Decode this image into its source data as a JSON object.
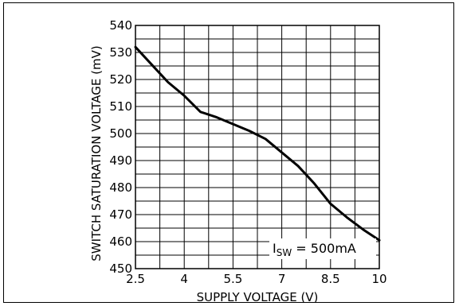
{
  "chart_data": {
    "type": "line",
    "title": "",
    "xlabel": "SUPPLY VOLTAGE (V)",
    "ylabel": "SWITCH SATURATION VOLTAGE (mV)",
    "xlim": [
      2.5,
      10
    ],
    "ylim": [
      450,
      540
    ],
    "x_major_ticks": [
      2.5,
      4,
      5.5,
      7,
      8.5,
      10
    ],
    "x_tick_labels": [
      "2.5",
      "4",
      "5.5",
      "7",
      "8.5",
      "10"
    ],
    "y_major_ticks": [
      450,
      460,
      470,
      480,
      490,
      500,
      510,
      520,
      530,
      540
    ],
    "y_tick_labels": [
      "450",
      "460",
      "470",
      "480",
      "490",
      "500",
      "510",
      "520",
      "530",
      "540"
    ],
    "grid": true,
    "series": [
      {
        "x": [
          2.5,
          3.0,
          3.5,
          4.0,
          4.5,
          5.0,
          5.5,
          6.0,
          6.5,
          7.0,
          7.5,
          8.0,
          8.5,
          9.0,
          9.5,
          10.0
        ],
        "y": [
          532,
          525.5,
          519,
          514,
          508,
          506,
          503.5,
          501,
          498,
          493,
          488,
          481.5,
          474,
          469,
          464.5,
          460.5
        ]
      }
    ],
    "annotation": {
      "symbol": "I",
      "subscript": "SW",
      "text": " = 500mA"
    }
  }
}
